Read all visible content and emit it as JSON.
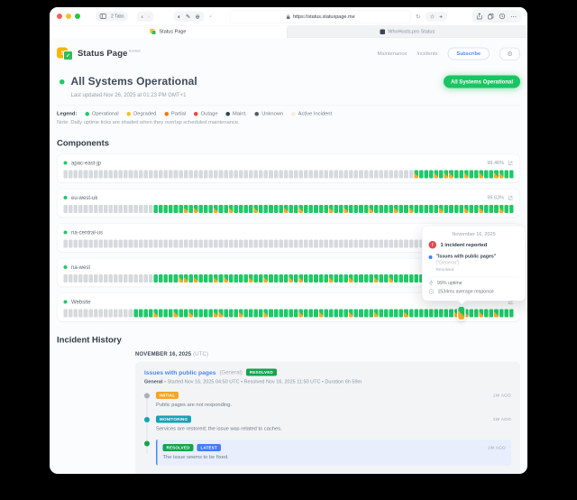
{
  "colors": {
    "accent_green": "#1fc968",
    "status_pill_green": "#19c463",
    "badge_green": "#17a24f",
    "badge_orange": "#f6a623",
    "badge_teal": "#16a3b5",
    "badge_blue": "#3f7ef7",
    "link_blue": "#4f86f0",
    "alert_red": "#e5484d",
    "tick_gray": "#d6d9de",
    "maintenance_orange": "#f7a928"
  },
  "browser": {
    "tabs_label": "2 Tabs",
    "url": "https://status.statuspage.me",
    "tabs": [
      {
        "label": "Status Page"
      },
      {
        "label": "WhoHosts.pro Status"
      }
    ]
  },
  "header": {
    "brand": "Status Page",
    "brand_badge": "hosted",
    "nav": [
      {
        "label": "Maintenance"
      },
      {
        "label": "Incidents"
      }
    ],
    "subscribe_label": "Subscribe"
  },
  "status": {
    "title": "All Systems Operational",
    "last_updated": "Last updated Nov 26, 2025 at 01:23 PM GMT+1",
    "badge": "All Systems Operational"
  },
  "legend": {
    "label": "Legend:",
    "note": "Note: Daily uptime ticks are shaded when they overlap scheduled maintenance.",
    "items": [
      {
        "label": "Operational",
        "color": "#1fc968"
      },
      {
        "label": "Degraded",
        "color": "#f2c410"
      },
      {
        "label": "Partial",
        "color": "#f97316"
      },
      {
        "label": "Outage",
        "color": "#ef4444"
      },
      {
        "label": "Maint.",
        "color": "#2c4159"
      },
      {
        "label": "Unknown",
        "color": "#525a66"
      },
      {
        "label": "Active Incident",
        "color": "#f8ecd9"
      }
    ]
  },
  "components": {
    "heading": "Components",
    "items": [
      {
        "name": "apac-east-jp",
        "uptime": "99.46%",
        "ticks": "70n 1m 3o 1m 1o 2m 2o 1m 2o 1m 2o 2m 2o"
      },
      {
        "name": "eu-west-uk",
        "uptime": "99.63%",
        "ticks": "18n 6o 1m 1o 1m 3o 1m 2o 1m 4o 1m 5o 1m 2o 1m 5o 1m 2o 1m 4o 1m 4o 1m 2o 1m 5o 1m 4o 1m 2o 1m 3o 1m 2o"
      },
      {
        "name": "na-central-us",
        "uptime": "",
        "ticks": "82n 1o 1m 6o"
      },
      {
        "name": "na-west",
        "uptime": "",
        "ticks": "18n 5o 2m 1o 1m 3o 1m 1o 1m 4o 1m 2o 1m 4o 1m 1o 1m 5o 1m 3o 1m 4o 1m 2o 1m 6o 1m 3o 1m 3o 1m 2o 1m 6o"
      },
      {
        "name": "Website",
        "uptime": "",
        "ticks": "14n 4o 1m 3o 1m 2o 1m 4o 2m 3o 1m 4o 1m 6o 1m 3o 1m 5o 1m 4o 1m 5o 1m 9o 1m 1h 1m 2o 1m 2o 1m 3o"
      }
    ]
  },
  "tooltip": {
    "date": "November 16, 2025",
    "incident_count": "1 incident reported",
    "incident_title": "\"Issues with public pages\"",
    "incident_scope": "(\"General\")",
    "incident_state": "Resolved",
    "uptime": "99% uptime",
    "response": "1534ms average response"
  },
  "incident_history": {
    "heading": "Incident History",
    "date": "NOVEMBER 16, 2025",
    "date_suffix": "(UTC)",
    "incident": {
      "title": "Issues with public pages",
      "scope": "(General)",
      "status": "RESOLVED",
      "meta_bold": "General",
      "meta": "• Started Nov 16, 2025 04:50 UTC • Resolved Nov 16, 2025 11:50 UTC • Duration 6h 59m",
      "updates": [
        {
          "badge": "INITIAL",
          "badge_color": "#f6a623",
          "dot_color": "#a9b0b9",
          "time": "1W AGO",
          "text": "Public pages are not responding.",
          "highlight": false
        },
        {
          "badge": "MONITORING",
          "badge_color": "#16a3b5",
          "dot_color": "#16a3b5",
          "time": "1W AGO",
          "text": "Services are restored; the issue was related to caches.",
          "highlight": false
        },
        {
          "badge": "RESOLVED",
          "badge_color": "#17a24f",
          "badge2": "LATEST",
          "badge2_color": "#3f7ef7",
          "dot_color": "#17a24f",
          "time": "1W AGO",
          "text": "The issue seems to be fixed.",
          "highlight": true
        }
      ]
    }
  }
}
